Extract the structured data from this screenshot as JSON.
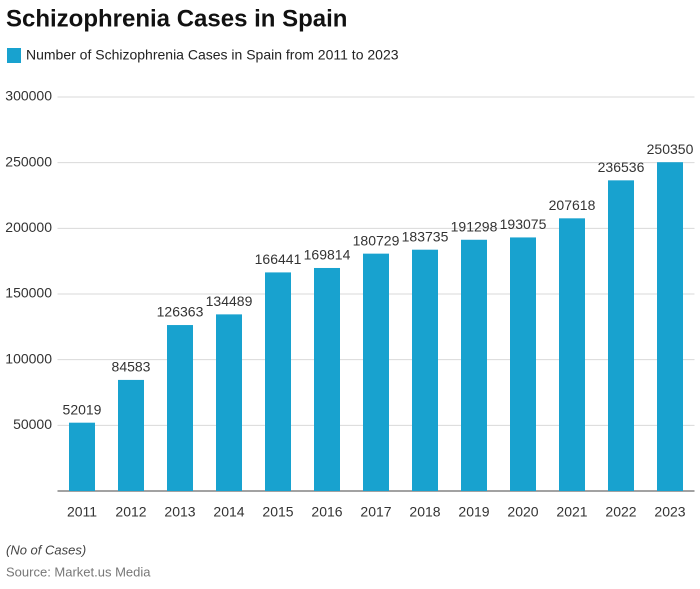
{
  "chart_data": {
    "type": "bar",
    "title": "Schizophrenia Cases in Spain",
    "categories": [
      "2011",
      "2012",
      "2013",
      "2014",
      "2015",
      "2016",
      "2017",
      "2018",
      "2019",
      "2020",
      "2021",
      "2022",
      "2023"
    ],
    "series": [
      {
        "name": "Number of Schizophrenia Cases in Spain from 2011 to 2023",
        "color": "#18a2cf",
        "values": [
          52019,
          84583,
          126363,
          134489,
          166441,
          169814,
          180729,
          183735,
          191298,
          193075,
          207618,
          236536,
          250350
        ]
      }
    ],
    "ylim": [
      0,
      300000
    ],
    "yticks": [
      50000,
      100000,
      150000,
      200000,
      250000,
      300000
    ],
    "grid": true,
    "note": "(No of Cases)",
    "source": "Source: Market.us Media"
  }
}
